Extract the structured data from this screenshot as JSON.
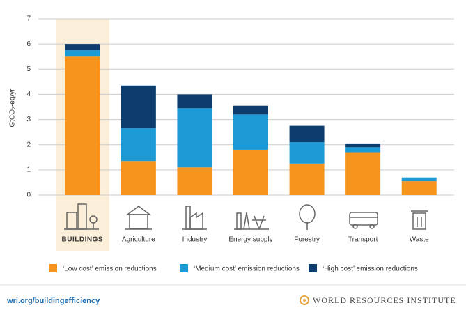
{
  "chart_data": {
    "type": "stacked-bar",
    "y_label": "GtCO₂-eq/yr",
    "categories": [
      "BUILDINGS",
      "Agriculture",
      "Industry",
      "Energy supply",
      "Forestry",
      "Transport",
      "Waste"
    ],
    "series": [
      {
        "name": "‘Low cost’ emission reductions",
        "color": "#f7941d",
        "values": [
          5.5,
          1.35,
          1.1,
          1.8,
          1.25,
          1.7,
          0.55
        ]
      },
      {
        "name": "‘Medium cost’ emission reductions",
        "color": "#1c9ad6",
        "values": [
          0.25,
          1.3,
          2.35,
          1.4,
          0.85,
          0.2,
          0.15
        ]
      },
      {
        "name": "‘High cost’ emission reductions",
        "color": "#0b3c6b",
        "values": [
          0.25,
          1.7,
          0.55,
          0.35,
          0.65,
          0.15,
          0
        ]
      }
    ],
    "ylim": [
      0,
      7
    ],
    "yticks": [
      0,
      1,
      2,
      3,
      4,
      5,
      6,
      7
    ],
    "grid": true,
    "source": "wri.org/buildingefficiency",
    "publisher": "WORLD RESOURCES INSTITUTE"
  }
}
